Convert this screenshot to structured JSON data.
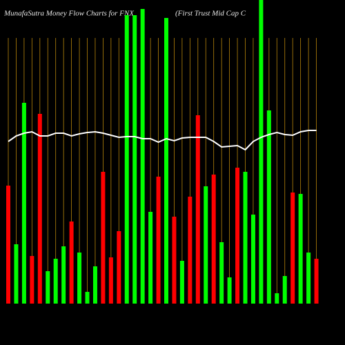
{
  "chart_data": {
    "type": "bar",
    "title": "MunafaSutra  Money Flow  Charts for FNX",
    "subtitle": "(First Trust Mid Cap C",
    "ylim": [
      0,
      440
    ],
    "values": [
      171,
      86,
      291,
      69,
      275,
      47,
      65,
      83,
      119,
      74,
      17,
      54,
      191,
      67,
      105,
      418,
      418,
      427,
      133,
      184,
      414,
      126,
      62,
      155,
      273,
      170,
      187,
      89,
      38,
      197,
      191,
      129,
      440,
      280,
      15,
      40,
      161,
      159,
      74,
      65
    ],
    "colors": [
      "#ff0000",
      "#00ff00",
      "#00ff00",
      "#ff0000",
      "#ff0000",
      "#00ff00",
      "#00ff00",
      "#00ff00",
      "#ff0000",
      "#00ff00",
      "#00ff00",
      "#00ff00",
      "#ff0000",
      "#ff0000",
      "#ff0000",
      "#00ff00",
      "#00ff00",
      "#00ff00",
      "#00ff00",
      "#ff0000",
      "#00ff00",
      "#ff0000",
      "#00ff00",
      "#ff0000",
      "#ff0000",
      "#00ff00",
      "#ff0000",
      "#00ff00",
      "#00ff00",
      "#ff0000",
      "#00ff00",
      "#00ff00",
      "#00ff00",
      "#00ff00",
      "#00ff00",
      "#00ff00",
      "#ff0000",
      "#00ff00",
      "#00ff00",
      "#ff0000"
    ],
    "line_values": [
      235,
      243,
      247,
      249,
      243,
      243,
      247,
      247,
      243,
      246,
      248,
      249,
      247,
      244,
      241,
      242,
      242,
      239,
      239,
      234,
      239,
      236,
      240,
      241,
      241,
      241,
      235,
      227,
      228,
      229,
      223,
      235,
      241,
      245,
      248,
      245,
      244,
      249,
      251,
      251
    ],
    "line_color": "#ffffff",
    "gridline_color": "#b8860b"
  }
}
